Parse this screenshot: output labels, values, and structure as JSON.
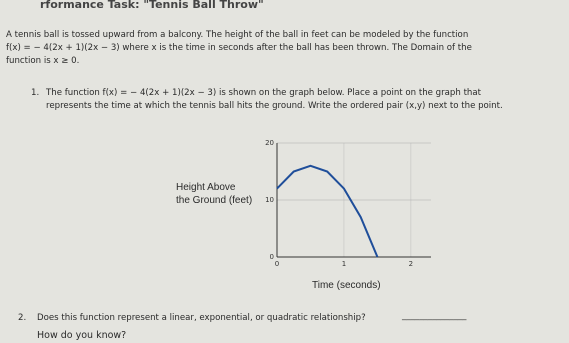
{
  "header": {
    "title": "rformance Task: \"Tennis Ball Throw\""
  },
  "intro": {
    "lines": [
      "A tennis ball is tossed upward from a balcony. The height of the ball in feet can be modeled by the function",
      "f(x) = − 4(2x + 1)(2x − 3) where x is the time in seconds after the ball has been thrown. The Domain of the",
      "function is x ≥ 0."
    ]
  },
  "question1": {
    "number": "1.",
    "lines": [
      "The function f(x) = − 4(2x + 1)(2x − 3) is shown on the graph below. Place a point on the graph that",
      "represents the time at which the tennis ball hits the ground. Write the ordered pair (x,y) next to the point."
    ]
  },
  "graph": {
    "y_label_lines": [
      "Height Above",
      "the Ground (feet)"
    ],
    "x_label": "Time (seconds)",
    "xlim": [
      0,
      2.3
    ],
    "ylim": [
      0,
      20
    ],
    "xticks": [
      0,
      1,
      2
    ],
    "yticks": [
      0,
      10,
      20
    ],
    "curve": {
      "x": [
        0,
        0.25,
        0.5,
        0.75,
        1,
        1.25,
        1.5
      ],
      "y": [
        12,
        15,
        16,
        15,
        12,
        7,
        0
      ],
      "color": "#1f4e9a"
    }
  },
  "question2": {
    "number": "2.",
    "text": "Does this function represent a linear, exponential, or quadratic relationship?",
    "blank": "_______________",
    "followup": "How do you know?"
  }
}
